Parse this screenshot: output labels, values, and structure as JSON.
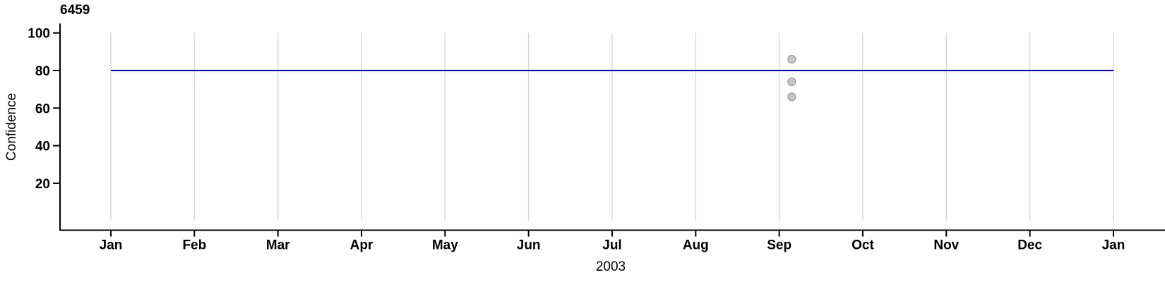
{
  "chart_data": {
    "type": "scatter",
    "title": "6459",
    "xlabel": "2003",
    "ylabel": "Confidence",
    "x_tick_labels": [
      "Jan",
      "Feb",
      "Mar",
      "Apr",
      "May",
      "Jun",
      "Jul",
      "Aug",
      "Sep",
      "Oct",
      "Nov",
      "Dec",
      "Jan"
    ],
    "y_tick_values": [
      20,
      40,
      60,
      80,
      100
    ],
    "ylim": [
      -5,
      105
    ],
    "grid_value_range": [
      0,
      100
    ],
    "grid": "vertical-at-each-month",
    "legend_position": "none",
    "reference_line": {
      "value": 80,
      "span_month_index": [
        0,
        12
      ],
      "color": "#0000C0"
    },
    "points": [
      {
        "month_index": 8.15,
        "value": 86
      },
      {
        "month_index": 8.15,
        "value": 74
      },
      {
        "month_index": 8.15,
        "value": 66
      }
    ],
    "colors": {
      "axis": "#000000",
      "grid": "#D9D9D9",
      "point_fill": "#C6C6C6",
      "point_stroke": "#9E9E9E",
      "reference_line": "#0000C0",
      "background": "#FFFFFF"
    }
  }
}
